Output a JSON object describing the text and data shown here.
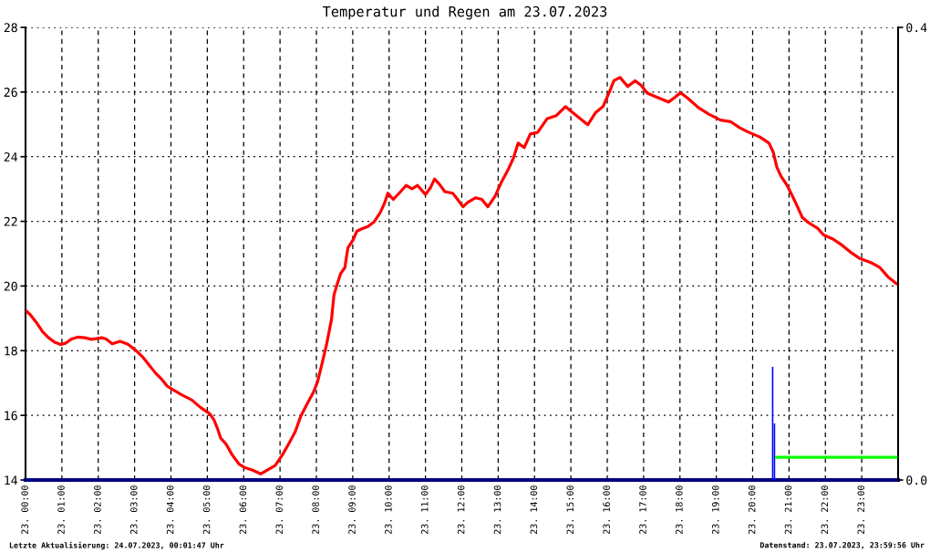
{
  "chart_data": {
    "type": "line",
    "title": "Temperatur und Regen am 23.07.2023",
    "xlim": [
      "2023-07-23T00:00",
      "2023-07-24T00:00"
    ],
    "xticks": [
      {
        "value": "2023-07-23T00:00",
        "label": "23. 00:00"
      },
      {
        "value": "2023-07-23T01:00",
        "label": "23. 01:00"
      },
      {
        "value": "2023-07-23T02:00",
        "label": "23. 02:00"
      },
      {
        "value": "2023-07-23T03:00",
        "label": "23. 03:00"
      },
      {
        "value": "2023-07-23T04:00",
        "label": "23. 04:00"
      },
      {
        "value": "2023-07-23T05:00",
        "label": "23. 05:00"
      },
      {
        "value": "2023-07-23T06:00",
        "label": "23. 06:00"
      },
      {
        "value": "2023-07-23T07:00",
        "label": "23. 07:00"
      },
      {
        "value": "2023-07-23T08:00",
        "label": "23. 08:00"
      },
      {
        "value": "2023-07-23T09:00",
        "label": "23. 09:00"
      },
      {
        "value": "2023-07-23T10:00",
        "label": "23. 10:00"
      },
      {
        "value": "2023-07-23T11:00",
        "label": "23. 11:00"
      },
      {
        "value": "2023-07-23T12:00",
        "label": "23. 12:00"
      },
      {
        "value": "2023-07-23T13:00",
        "label": "23. 13:00"
      },
      {
        "value": "2023-07-23T14:00",
        "label": "23. 14:00"
      },
      {
        "value": "2023-07-23T15:00",
        "label": "23. 15:00"
      },
      {
        "value": "2023-07-23T16:00",
        "label": "23. 16:00"
      },
      {
        "value": "2023-07-23T17:00",
        "label": "23. 17:00"
      },
      {
        "value": "2023-07-23T18:00",
        "label": "23. 18:00"
      },
      {
        "value": "2023-07-23T19:00",
        "label": "23. 19:00"
      },
      {
        "value": "2023-07-23T20:00",
        "label": "23. 20:00"
      },
      {
        "value": "2023-07-23T21:00",
        "label": "23. 21:00"
      },
      {
        "value": "2023-07-23T22:00",
        "label": "23. 22:00"
      },
      {
        "value": "2023-07-23T23:00",
        "label": "23. 23:00"
      }
    ],
    "ylim": [
      14,
      28
    ],
    "yticks": [
      14,
      16,
      18,
      20,
      22,
      24,
      26,
      28
    ],
    "y2lim": [
      0,
      0.4
    ],
    "y2ticks": [
      {
        "value": 0,
        "label": "0.0"
      },
      {
        "value": 0.4,
        "label": "0.4"
      }
    ],
    "grid": true,
    "series": [
      {
        "color": "#ff0000",
        "x": [
          "2023-07-23T00:00",
          "2023-07-23T00:08",
          "2023-07-23T00:18",
          "2023-07-23T00:28",
          "2023-07-23T00:38",
          "2023-07-23T00:48",
          "2023-07-23T00:58",
          "2023-07-23T01:06",
          "2023-07-23T01:16",
          "2023-07-23T01:26",
          "2023-07-23T01:38",
          "2023-07-23T01:49",
          "2023-07-23T02:06",
          "2023-07-23T02:13",
          "2023-07-23T02:23",
          "2023-07-23T02:36",
          "2023-07-23T02:49",
          "2023-07-23T03:02",
          "2023-07-23T03:14",
          "2023-07-23T03:23",
          "2023-07-23T03:34",
          "2023-07-23T03:44",
          "2023-07-23T03:54",
          "2023-07-23T04:06",
          "2023-07-23T04:19",
          "2023-07-23T04:34",
          "2023-07-23T04:49",
          "2023-07-23T05:04",
          "2023-07-23T05:11",
          "2023-07-23T05:17",
          "2023-07-23T05:22",
          "2023-07-23T05:31",
          "2023-07-23T05:41",
          "2023-07-23T05:52",
          "2023-07-23T06:02",
          "2023-07-23T06:14",
          "2023-07-23T06:28",
          "2023-07-23T06:39",
          "2023-07-23T06:52",
          "2023-07-23T07:04",
          "2023-07-23T07:14",
          "2023-07-23T07:25",
          "2023-07-23T07:34",
          "2023-07-23T07:44",
          "2023-07-23T07:55",
          "2023-07-23T08:02",
          "2023-07-23T08:10",
          "2023-07-23T08:17",
          "2023-07-23T08:25",
          "2023-07-23T08:29",
          "2023-07-23T08:35",
          "2023-07-23T08:40",
          "2023-07-23T08:47",
          "2023-07-23T08:52",
          "2023-07-23T09:00",
          "2023-07-23T09:07",
          "2023-07-23T09:15",
          "2023-07-23T09:25",
          "2023-07-23T09:35",
          "2023-07-23T09:45",
          "2023-07-23T09:52",
          "2023-07-23T09:58",
          "2023-07-23T10:07",
          "2023-07-23T10:20",
          "2023-07-23T10:28",
          "2023-07-23T10:38",
          "2023-07-23T10:47",
          "2023-07-23T11:00",
          "2023-07-23T11:08",
          "2023-07-23T11:15",
          "2023-07-23T11:23",
          "2023-07-23T11:32",
          "2023-07-23T11:45",
          "2023-07-23T11:53",
          "2023-07-23T12:02",
          "2023-07-23T12:10",
          "2023-07-23T12:23",
          "2023-07-23T12:33",
          "2023-07-23T12:43",
          "2023-07-23T12:55",
          "2023-07-23T13:05",
          "2023-07-23T13:16",
          "2023-07-23T13:25",
          "2023-07-23T13:33",
          "2023-07-23T13:43",
          "2023-07-23T13:53",
          "2023-07-23T14:05",
          "2023-07-23T14:21",
          "2023-07-23T14:36",
          "2023-07-23T14:51",
          "2023-07-23T15:06",
          "2023-07-23T15:28",
          "2023-07-23T15:41",
          "2023-07-23T15:53",
          "2023-07-23T16:04",
          "2023-07-23T16:11",
          "2023-07-23T16:21",
          "2023-07-23T16:34",
          "2023-07-23T16:46",
          "2023-07-23T16:56",
          "2023-07-23T17:06",
          "2023-07-23T17:21",
          "2023-07-23T17:41",
          "2023-07-23T17:52",
          "2023-07-23T18:01",
          "2023-07-23T18:14",
          "2023-07-23T18:31",
          "2023-07-23T18:47",
          "2023-07-23T19:07",
          "2023-07-23T19:24",
          "2023-07-23T19:39",
          "2023-07-23T19:54",
          "2023-07-23T20:12",
          "2023-07-23T20:27",
          "2023-07-23T20:34",
          "2023-07-23T20:40",
          "2023-07-23T20:47",
          "2023-07-23T20:57",
          "2023-07-23T21:07",
          "2023-07-23T21:14",
          "2023-07-23T21:22",
          "2023-07-23T21:32",
          "2023-07-23T21:47",
          "2023-07-23T21:57",
          "2023-07-23T22:12",
          "2023-07-23T22:27",
          "2023-07-23T22:42",
          "2023-07-23T22:57",
          "2023-07-23T23:17",
          "2023-07-23T23:30",
          "2023-07-23T23:43",
          "2023-07-23T23:59"
        ],
        "values": [
          19.25,
          19.11,
          18.87,
          18.59,
          18.4,
          18.26,
          18.19,
          18.23,
          18.36,
          18.42,
          18.4,
          18.35,
          18.4,
          18.36,
          18.21,
          18.29,
          18.2,
          18.01,
          17.79,
          17.58,
          17.32,
          17.13,
          16.9,
          16.76,
          16.62,
          16.48,
          16.24,
          16.05,
          15.86,
          15.58,
          15.3,
          15.11,
          14.78,
          14.5,
          14.38,
          14.31,
          14.19,
          14.31,
          14.45,
          14.78,
          15.11,
          15.49,
          15.96,
          16.33,
          16.71,
          17.04,
          17.65,
          18.21,
          18.97,
          19.72,
          20.1,
          20.38,
          20.57,
          21.18,
          21.41,
          21.7,
          21.77,
          21.84,
          21.98,
          22.26,
          22.54,
          22.87,
          22.68,
          22.94,
          23.11,
          23.01,
          23.11,
          22.83,
          23.03,
          23.31,
          23.15,
          22.92,
          22.87,
          22.68,
          22.45,
          22.59,
          22.73,
          22.68,
          22.45,
          22.78,
          23.2,
          23.58,
          23.95,
          24.42,
          24.28,
          24.7,
          24.75,
          25.18,
          25.27,
          25.55,
          25.32,
          24.99,
          25.37,
          25.55,
          26.02,
          26.35,
          26.45,
          26.17,
          26.35,
          26.21,
          25.97,
          25.85,
          25.69,
          25.84,
          25.98,
          25.79,
          25.51,
          25.32,
          25.13,
          25.08,
          24.89,
          24.75,
          24.61,
          24.42,
          24.14,
          23.67,
          23.39,
          23.11,
          22.73,
          22.45,
          22.12,
          21.96,
          21.79,
          21.58,
          21.46,
          21.27,
          21.04,
          20.85,
          20.71,
          20.57,
          20.29,
          20.05
        ]
      },
      {
        "type": "bar",
        "color": "#0000ff",
        "axis": "y2",
        "x": [
          "2023-07-23T20:33",
          "2023-07-23T20:36"
        ],
        "values": [
          0.1,
          0.05
        ]
      },
      {
        "type": "line",
        "color": "#00ff00",
        "axis": "y2",
        "x": [
          "2023-07-23T20:37",
          "2023-07-23T23:59"
        ],
        "values": [
          0.02,
          0.02
        ]
      }
    ],
    "annotations": [
      "Letzte Aktualisierung: 24.07.2023, 00:01:47 Uhr",
      "Datenstand: 23.07.2023, 23:59:56 Uhr"
    ]
  }
}
